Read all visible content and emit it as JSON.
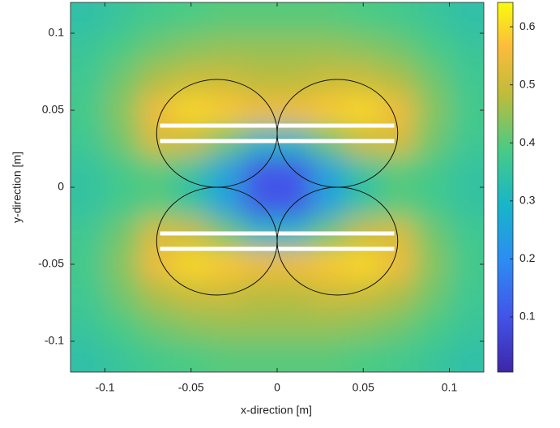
{
  "chart_data": {
    "type": "heatmap",
    "xlabel": "x-direction [m]",
    "ylabel": "y-direction [m]",
    "xlim": [
      -0.12,
      0.12
    ],
    "ylim": [
      -0.12,
      0.12
    ],
    "xticks": [
      -0.1,
      -0.05,
      0,
      0.05,
      0.1
    ],
    "yticks": [
      -0.1,
      -0.05,
      0,
      0.05,
      0.1
    ],
    "colormap": "parula",
    "clim": [
      0.005,
      0.642
    ],
    "cticks": [
      0.1,
      0.2,
      0.3,
      0.4,
      0.5,
      0.6
    ],
    "x": [
      -0.11,
      -0.09,
      -0.07,
      -0.05,
      -0.03,
      -0.01,
      0.01,
      0.03,
      0.05,
      0.07,
      0.09,
      0.11
    ],
    "y": [
      0.11,
      0.09,
      0.07,
      0.05,
      0.03,
      0.01,
      -0.01,
      -0.03,
      -0.05,
      -0.07,
      -0.09,
      -0.11
    ],
    "z": [
      [
        0.34,
        0.36,
        0.38,
        0.39,
        0.4,
        0.4,
        0.4,
        0.4,
        0.39,
        0.38,
        0.36,
        0.34
      ],
      [
        0.36,
        0.39,
        0.42,
        0.44,
        0.45,
        0.45,
        0.45,
        0.45,
        0.44,
        0.42,
        0.39,
        0.36
      ],
      [
        0.37,
        0.42,
        0.47,
        0.5,
        0.5,
        0.48,
        0.48,
        0.5,
        0.5,
        0.47,
        0.42,
        0.37
      ],
      [
        0.38,
        0.44,
        0.55,
        0.6,
        0.58,
        0.55,
        0.55,
        0.58,
        0.6,
        0.55,
        0.44,
        0.38
      ],
      [
        0.37,
        0.42,
        0.52,
        0.5,
        0.42,
        0.3,
        0.3,
        0.42,
        0.5,
        0.52,
        0.42,
        0.37
      ],
      [
        0.35,
        0.38,
        0.4,
        0.35,
        0.25,
        0.1,
        0.1,
        0.25,
        0.35,
        0.4,
        0.38,
        0.35
      ],
      [
        0.35,
        0.38,
        0.4,
        0.35,
        0.25,
        0.1,
        0.1,
        0.25,
        0.35,
        0.4,
        0.38,
        0.35
      ],
      [
        0.37,
        0.42,
        0.52,
        0.5,
        0.42,
        0.3,
        0.3,
        0.42,
        0.5,
        0.52,
        0.42,
        0.37
      ],
      [
        0.38,
        0.44,
        0.55,
        0.6,
        0.58,
        0.55,
        0.55,
        0.58,
        0.6,
        0.55,
        0.44,
        0.38
      ],
      [
        0.37,
        0.42,
        0.47,
        0.5,
        0.5,
        0.48,
        0.48,
        0.5,
        0.5,
        0.47,
        0.42,
        0.37
      ],
      [
        0.36,
        0.39,
        0.42,
        0.44,
        0.45,
        0.45,
        0.45,
        0.45,
        0.44,
        0.42,
        0.39,
        0.36
      ],
      [
        0.34,
        0.36,
        0.38,
        0.39,
        0.4,
        0.4,
        0.4,
        0.4,
        0.39,
        0.38,
        0.36,
        0.34
      ]
    ],
    "circles": [
      {
        "x": -0.035,
        "y": 0.035,
        "r": 0.035
      },
      {
        "x": 0.035,
        "y": 0.035,
        "r": 0.035
      },
      {
        "x": -0.035,
        "y": -0.035,
        "r": 0.035
      },
      {
        "x": 0.035,
        "y": -0.035,
        "r": 0.035
      }
    ],
    "conductors": [
      {
        "x0": -0.068,
        "x1": 0.068,
        "y": 0.04
      },
      {
        "x0": -0.068,
        "x1": 0.068,
        "y": 0.03
      },
      {
        "x0": -0.068,
        "x1": 0.068,
        "y": -0.03
      },
      {
        "x0": -0.068,
        "x1": 0.068,
        "y": -0.04
      }
    ]
  }
}
